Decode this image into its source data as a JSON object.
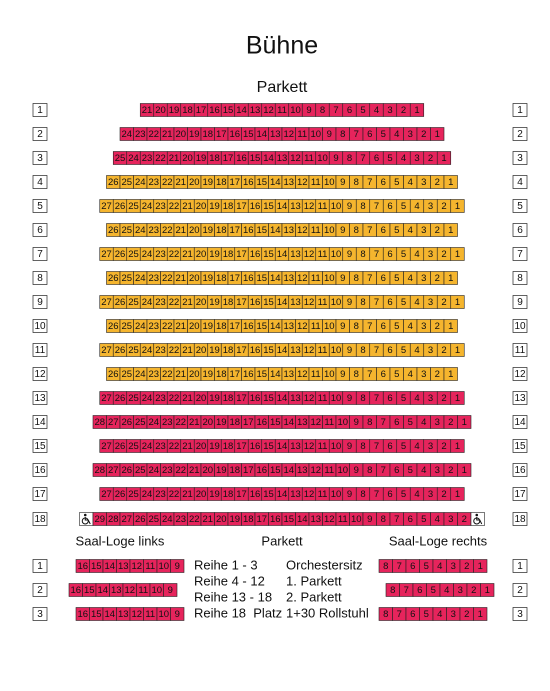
{
  "title": "Bühne",
  "subtitle": "Parkett",
  "rows": [
    {
      "label": "1",
      "color": "#e6245c",
      "seats": [
        21,
        20,
        19,
        18,
        17,
        16,
        15,
        14,
        13,
        12,
        11,
        10,
        9,
        8,
        7,
        6,
        5,
        4,
        3,
        2,
        1
      ]
    },
    {
      "label": "2",
      "color": "#e6245c",
      "seats": [
        24,
        23,
        22,
        21,
        20,
        19,
        18,
        17,
        16,
        15,
        14,
        13,
        12,
        11,
        10,
        9,
        8,
        7,
        6,
        5,
        4,
        3,
        2,
        1
      ]
    },
    {
      "label": "3",
      "color": "#e6245c",
      "seats": [
        25,
        24,
        23,
        22,
        21,
        20,
        19,
        18,
        17,
        16,
        15,
        14,
        13,
        12,
        11,
        10,
        9,
        8,
        7,
        6,
        5,
        4,
        3,
        2,
        1
      ]
    },
    {
      "label": "4",
      "color": "#f5b52e",
      "seats": [
        26,
        25,
        24,
        23,
        22,
        21,
        20,
        19,
        18,
        17,
        16,
        15,
        14,
        13,
        12,
        11,
        10,
        9,
        8,
        7,
        6,
        5,
        4,
        3,
        2,
        1
      ]
    },
    {
      "label": "5",
      "color": "#f5b52e",
      "seats": [
        27,
        26,
        25,
        24,
        23,
        22,
        21,
        20,
        19,
        18,
        17,
        16,
        15,
        14,
        13,
        12,
        11,
        10,
        9,
        8,
        7,
        6,
        5,
        4,
        3,
        2,
        1
      ]
    },
    {
      "label": "6",
      "color": "#f5b52e",
      "seats": [
        26,
        25,
        24,
        23,
        22,
        21,
        20,
        19,
        18,
        17,
        16,
        15,
        14,
        13,
        12,
        11,
        10,
        9,
        8,
        7,
        6,
        5,
        4,
        3,
        2,
        1
      ]
    },
    {
      "label": "7",
      "color": "#f5b52e",
      "seats": [
        27,
        26,
        25,
        24,
        23,
        22,
        21,
        20,
        19,
        18,
        17,
        16,
        15,
        14,
        13,
        12,
        11,
        10,
        9,
        8,
        7,
        6,
        5,
        4,
        3,
        2,
        1
      ]
    },
    {
      "label": "8",
      "color": "#f5b52e",
      "seats": [
        26,
        25,
        24,
        23,
        22,
        21,
        20,
        19,
        18,
        17,
        16,
        15,
        14,
        13,
        12,
        11,
        10,
        9,
        8,
        7,
        6,
        5,
        4,
        3,
        2,
        1
      ]
    },
    {
      "label": "9",
      "color": "#f5b52e",
      "seats": [
        27,
        26,
        25,
        24,
        23,
        22,
        21,
        20,
        19,
        18,
        17,
        16,
        15,
        14,
        13,
        12,
        11,
        10,
        9,
        8,
        7,
        6,
        5,
        4,
        3,
        2,
        1
      ]
    },
    {
      "label": "10",
      "color": "#f5b52e",
      "seats": [
        26,
        25,
        24,
        23,
        22,
        21,
        20,
        19,
        18,
        17,
        16,
        15,
        14,
        13,
        12,
        11,
        10,
        9,
        8,
        7,
        6,
        5,
        4,
        3,
        2,
        1
      ]
    },
    {
      "label": "11",
      "color": "#f5b52e",
      "seats": [
        27,
        26,
        25,
        24,
        23,
        22,
        21,
        20,
        19,
        18,
        17,
        16,
        15,
        14,
        13,
        12,
        11,
        10,
        9,
        8,
        7,
        6,
        5,
        4,
        3,
        2,
        1
      ]
    },
    {
      "label": "12",
      "color": "#f5b52e",
      "seats": [
        26,
        25,
        24,
        23,
        22,
        21,
        20,
        19,
        18,
        17,
        16,
        15,
        14,
        13,
        12,
        11,
        10,
        9,
        8,
        7,
        6,
        5,
        4,
        3,
        2,
        1
      ]
    },
    {
      "label": "13",
      "color": "#e6245c",
      "seats": [
        27,
        26,
        25,
        24,
        23,
        22,
        21,
        20,
        19,
        18,
        17,
        16,
        15,
        14,
        13,
        12,
        11,
        10,
        9,
        8,
        7,
        6,
        5,
        4,
        3,
        2,
        1
      ]
    },
    {
      "label": "14",
      "color": "#e6245c",
      "seats": [
        28,
        27,
        26,
        25,
        24,
        23,
        22,
        21,
        20,
        19,
        18,
        17,
        16,
        15,
        14,
        13,
        12,
        11,
        10,
        9,
        8,
        7,
        6,
        5,
        4,
        3,
        2,
        1
      ]
    },
    {
      "label": "15",
      "color": "#e6245c",
      "seats": [
        27,
        26,
        25,
        24,
        23,
        22,
        21,
        20,
        19,
        18,
        17,
        16,
        15,
        14,
        13,
        12,
        11,
        10,
        9,
        8,
        7,
        6,
        5,
        4,
        3,
        2,
        1
      ]
    },
    {
      "label": "16",
      "color": "#e6245c",
      "seats": [
        28,
        27,
        26,
        25,
        24,
        23,
        22,
        21,
        20,
        19,
        18,
        17,
        16,
        15,
        14,
        13,
        12,
        11,
        10,
        9,
        8,
        7,
        6,
        5,
        4,
        3,
        2,
        1
      ]
    },
    {
      "label": "17",
      "color": "#e6245c",
      "seats": [
        27,
        26,
        25,
        24,
        23,
        22,
        21,
        20,
        19,
        18,
        17,
        16,
        15,
        14,
        13,
        12,
        11,
        10,
        9,
        8,
        7,
        6,
        5,
        4,
        3,
        2,
        1
      ]
    },
    {
      "label": "18",
      "color": "#e6245c",
      "wheelchair": true,
      "seats": [
        29,
        28,
        27,
        26,
        25,
        24,
        23,
        22,
        21,
        20,
        19,
        18,
        17,
        16,
        15,
        14,
        13,
        12,
        11,
        10,
        9,
        8,
        7,
        6,
        5,
        4,
        3,
        2
      ]
    }
  ],
  "loge": {
    "left_title": "Saal-Loge links",
    "center_title": "Parkett",
    "right_title": "Saal-Loge rechts",
    "color": "#e6245c",
    "rows": [
      {
        "label": "1",
        "left": [
          16,
          15,
          14,
          13,
          12,
          11,
          10,
          9
        ],
        "right": [
          8,
          7,
          6,
          5,
          4,
          3,
          2,
          1
        ]
      },
      {
        "label": "2",
        "left": [
          16,
          15,
          14,
          13,
          12,
          11,
          10,
          9
        ],
        "right": [
          8,
          7,
          6,
          5,
          4,
          3,
          2,
          1
        ]
      },
      {
        "label": "3",
        "left": [
          16,
          15,
          14,
          13,
          12,
          11,
          10,
          9
        ],
        "right": [
          8,
          7,
          6,
          5,
          4,
          3,
          2,
          1
        ]
      }
    ]
  },
  "legend": [
    [
      "Reihe 1 - 3",
      "Orchestersitz"
    ],
    [
      "Reihe 4 - 12",
      "1. Parkett"
    ],
    [
      "Reihe 13 - 18",
      "2. Parkett"
    ],
    [
      "Reihe 18  Platz",
      "1+30 Rollstuhl"
    ]
  ]
}
